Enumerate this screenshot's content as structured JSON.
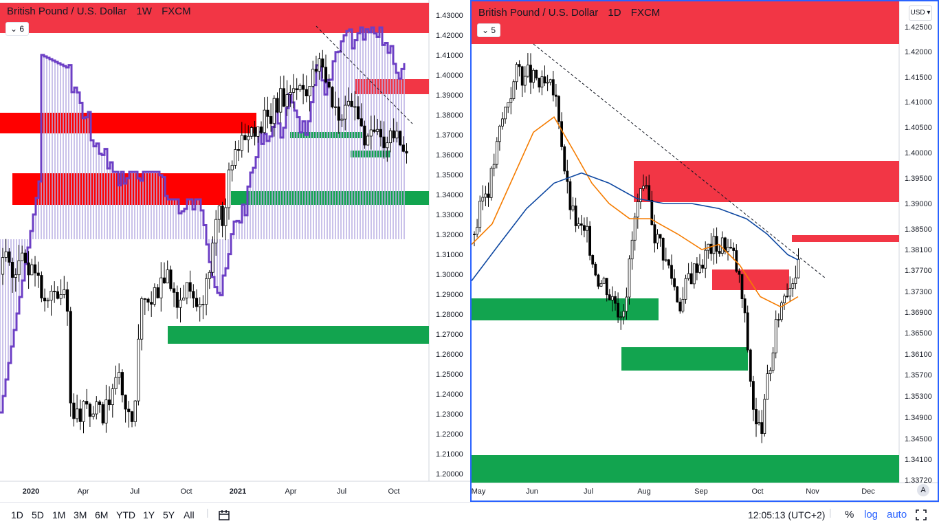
{
  "left_chart": {
    "legend": {
      "symbol": "British Pound / U.S. Dollar",
      "interval": "1W",
      "exchange": "FXCM"
    },
    "collapse_count": "6",
    "price_axis": [
      "1.43000",
      "1.42000",
      "1.41000",
      "1.40000",
      "1.39000",
      "1.38000",
      "1.37000",
      "1.36000",
      "1.35000",
      "1.34000",
      "1.33000",
      "1.32000",
      "1.31000",
      "1.30000",
      "1.29000",
      "1.28000",
      "1.27000",
      "1.26000",
      "1.25000",
      "1.24000",
      "1.23000",
      "1.22000",
      "1.21000",
      "1.20000"
    ],
    "time_axis": [
      "2020",
      "Apr",
      "Jul",
      "Oct",
      "2021",
      "Apr",
      "Jul",
      "Oct"
    ],
    "colors": {
      "up": "#ffffff",
      "down": "#000000",
      "supply": "#ff0000",
      "demand": "#12a44f",
      "indicator": "#6c3fc5",
      "indicator_fill": "#b9aee3"
    }
  },
  "right_chart": {
    "legend": {
      "symbol": "British Pound / U.S. Dollar",
      "interval": "1D",
      "exchange": "FXCM"
    },
    "collapse_count": "5",
    "currency": "USD",
    "scale_mode": "A",
    "price_axis": [
      "1.42500",
      "1.42000",
      "1.41500",
      "1.41000",
      "1.40500",
      "1.40000",
      "1.39500",
      "1.39000",
      "1.38500",
      "1.38100",
      "1.37700",
      "1.37300",
      "1.36900",
      "1.36500",
      "1.36100",
      "1.35700",
      "1.35300",
      "1.34900",
      "1.34500",
      "1.34100",
      "1.33720"
    ],
    "time_axis": [
      "May",
      "Jun",
      "Jul",
      "Aug",
      "Sep",
      "Oct",
      "Nov",
      "Dec"
    ],
    "colors": {
      "up": "#ffffff",
      "down": "#000000",
      "supply": "#f23645",
      "demand": "#12a44f",
      "ma_fast": "#f57c00",
      "ma_slow": "#0d47a1"
    }
  },
  "toolbar": {
    "timeframes": [
      "1D",
      "5D",
      "1M",
      "3M",
      "6M",
      "YTD",
      "1Y",
      "5Y",
      "All"
    ],
    "compare_icon": "date-range-icon",
    "clock": "12:05:13 (UTC+2)",
    "percent": "%",
    "log": "log",
    "auto": "auto",
    "fullscreen_icon": "fullscreen-icon"
  }
}
